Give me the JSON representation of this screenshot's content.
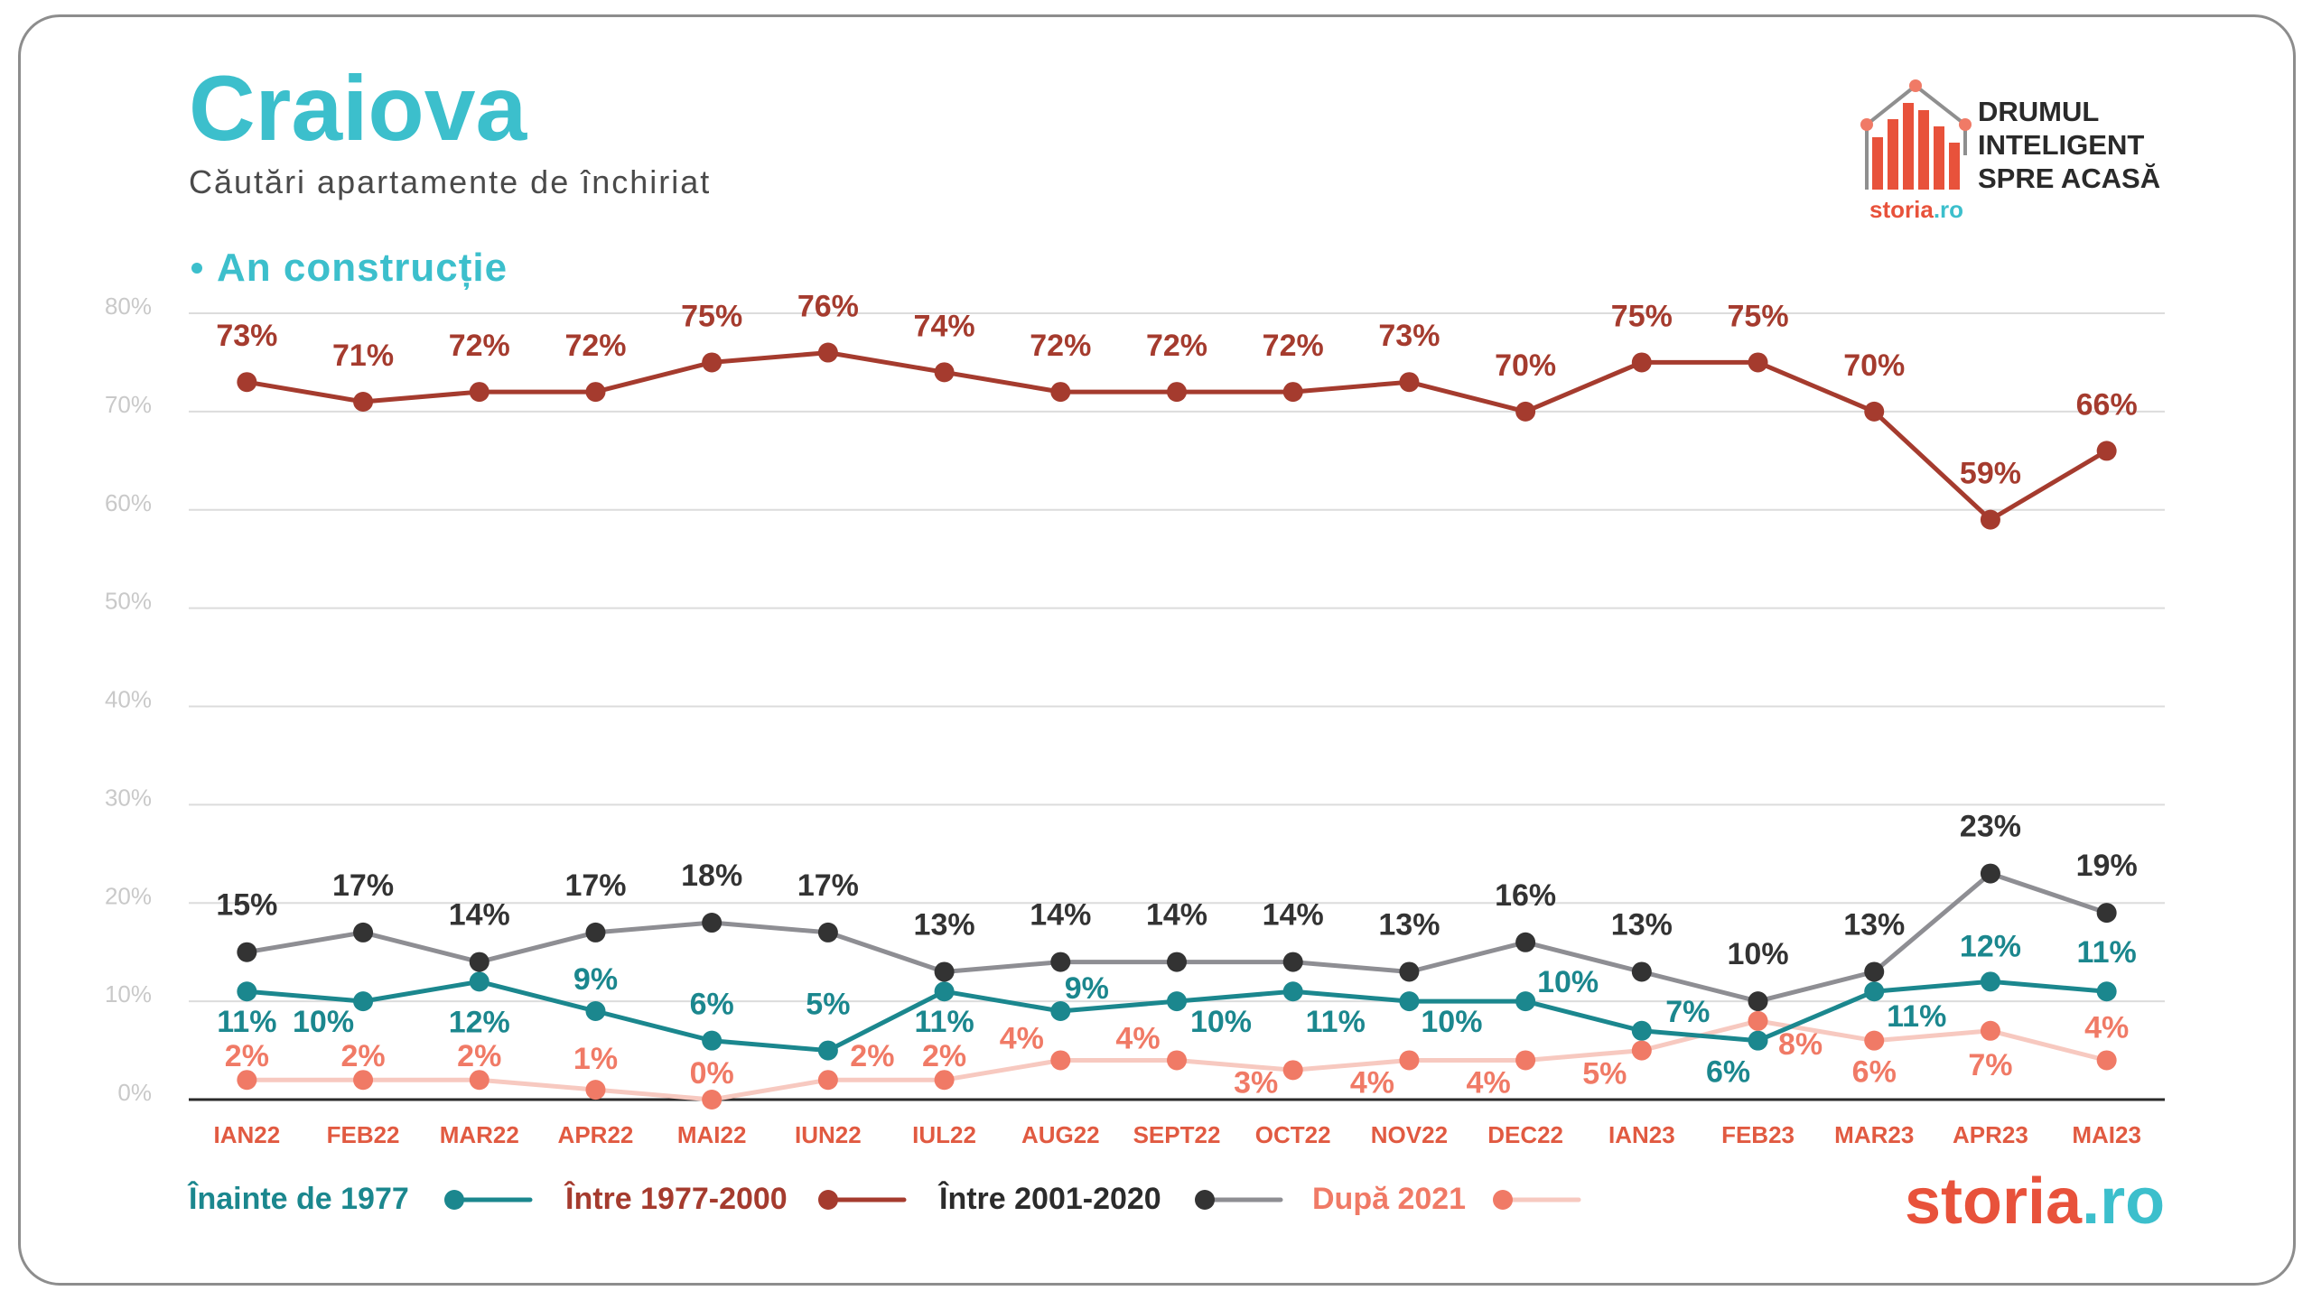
{
  "chart_data": {
    "type": "line",
    "title": "Craiova",
    "subtitle": "Căutări apartamente de închiriat",
    "section_label": "An construcție",
    "xlabel": "",
    "ylabel": "",
    "unit": "%",
    "ylim": [
      0,
      80
    ],
    "yticks": [
      0,
      10,
      20,
      30,
      40,
      50,
      60,
      70,
      80
    ],
    "grid": true,
    "legend_position": "bottom-left",
    "categories": [
      "IAN22",
      "FEB22",
      "MAR22",
      "APR22",
      "MAI22",
      "IUN22",
      "IUL22",
      "AUG22",
      "SEPT22",
      "OCT22",
      "NOV22",
      "DEC22",
      "IAN23",
      "FEB23",
      "MAR23",
      "APR23",
      "MAI23"
    ],
    "series": [
      {
        "name": "Înainte de 1977",
        "color": "#1b878e",
        "line_color": "#1b878e",
        "values": [
          11,
          10,
          12,
          9,
          6,
          5,
          11,
          9,
          10,
          11,
          10,
          10,
          7,
          6,
          11,
          12,
          11
        ]
      },
      {
        "name": "Între 1977-2000",
        "color": "#a53b2e",
        "line_color": "#a53b2e",
        "values": [
          73,
          71,
          72,
          72,
          75,
          76,
          74,
          72,
          72,
          72,
          73,
          70,
          75,
          75,
          70,
          59,
          66
        ]
      },
      {
        "name": "Între 2001-2020",
        "color": "#333333",
        "line_color": "#8e8e93",
        "values": [
          15,
          17,
          14,
          17,
          18,
          17,
          13,
          14,
          14,
          14,
          13,
          16,
          13,
          10,
          13,
          23,
          19
        ]
      },
      {
        "name": "După 2021",
        "color": "#f07a66",
        "line_color": "#f7c9c0",
        "values": [
          2,
          2,
          2,
          1,
          0,
          2,
          2,
          4,
          4,
          3,
          4,
          4,
          5,
          8,
          6,
          7,
          4
        ]
      }
    ]
  },
  "logo": {
    "tagline": [
      "DRUMUL",
      "INTELIGENT",
      "SPRE ACASĂ"
    ]
  },
  "brand": {
    "name": "storia",
    "tld": ".ro"
  },
  "colors": {
    "title": "#3cbfcc",
    "tick_labels": "#e15a41",
    "ytick_labels": "#c9c9c9",
    "grid": "#dcdcdc",
    "axis": "#2a2a2a",
    "frame": "#8d8d8d",
    "brand_orange": "#e8523b",
    "brand_teal": "#3cbfcc",
    "roof": "#8f8f8f",
    "tagline": "#2a2a2a"
  }
}
